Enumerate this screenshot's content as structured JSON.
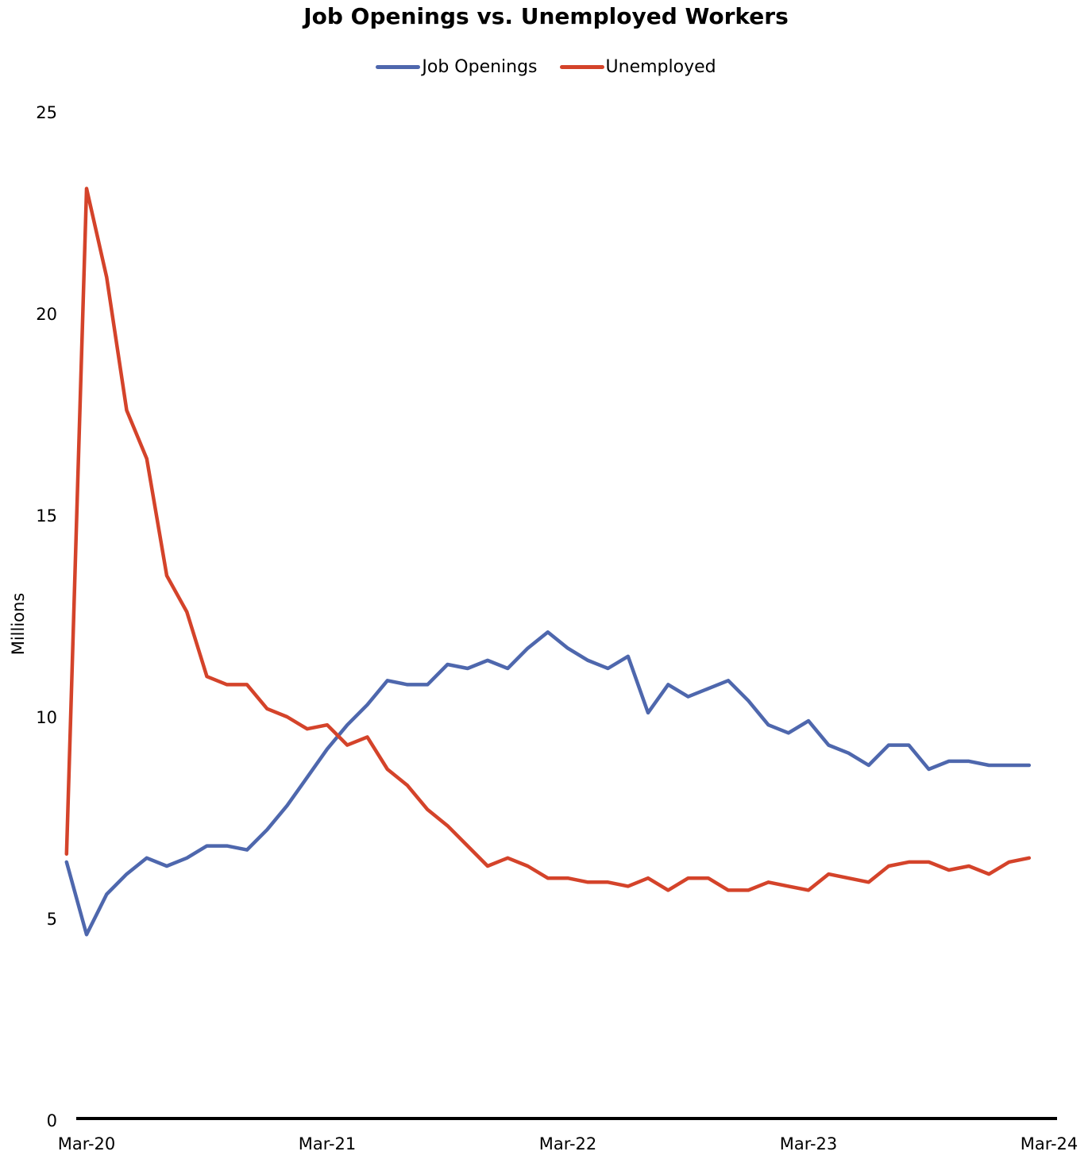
{
  "chart_data": {
    "type": "line",
    "title": "Job Openings vs. Unemployed Workers",
    "xlabel": "",
    "ylabel": "Millions",
    "ylim": [
      0,
      25
    ],
    "y_ticks": [
      "0",
      "5",
      "10",
      "15",
      "20",
      "25"
    ],
    "x_tick_labels": [
      "Mar-20",
      "Mar-21",
      "Mar-22",
      "Mar-23",
      "Mar-24"
    ],
    "x_tick_months": [
      "2020-03",
      "2021-03",
      "2022-03",
      "2023-03",
      "2024-03"
    ],
    "grid": false,
    "legend_position": "top-center",
    "x": [
      "2020-02",
      "2020-03",
      "2020-04",
      "2020-05",
      "2020-06",
      "2020-07",
      "2020-08",
      "2020-09",
      "2020-10",
      "2020-11",
      "2020-12",
      "2021-01",
      "2021-02",
      "2021-03",
      "2021-04",
      "2021-05",
      "2021-06",
      "2021-07",
      "2021-08",
      "2021-09",
      "2021-10",
      "2021-11",
      "2021-12",
      "2022-01",
      "2022-02",
      "2022-03",
      "2022-04",
      "2022-05",
      "2022-06",
      "2022-07",
      "2022-08",
      "2022-09",
      "2022-10",
      "2022-11",
      "2022-12",
      "2023-01",
      "2023-02",
      "2023-03",
      "2023-04",
      "2023-05",
      "2023-06",
      "2023-07",
      "2023-08",
      "2023-09",
      "2023-10",
      "2023-11",
      "2023-12",
      "2024-01",
      "2024-02"
    ],
    "series": [
      {
        "name": "Job Openings",
        "color": "#4e67ad",
        "values": [
          6.4,
          4.6,
          5.6,
          6.1,
          6.5,
          6.3,
          6.5,
          6.8,
          6.8,
          6.7,
          7.2,
          7.8,
          8.5,
          9.2,
          9.8,
          10.3,
          10.9,
          10.8,
          10.8,
          11.3,
          11.2,
          11.4,
          11.2,
          11.7,
          12.1,
          11.7,
          11.4,
          11.2,
          11.5,
          10.1,
          10.8,
          10.5,
          10.7,
          10.9,
          10.4,
          9.8,
          9.6,
          9.9,
          9.3,
          9.1,
          8.8,
          9.3,
          9.3,
          8.7,
          8.9,
          8.9,
          8.8,
          8.8,
          8.8
        ]
      },
      {
        "name": "Unemployed",
        "color": "#d4432a",
        "values": [
          6.6,
          23.1,
          20.9,
          17.6,
          16.4,
          13.5,
          12.6,
          11.0,
          10.8,
          10.8,
          10.2,
          10.0,
          9.7,
          9.8,
          9.3,
          9.5,
          8.7,
          8.3,
          7.7,
          7.3,
          6.8,
          6.3,
          6.5,
          6.3,
          6.0,
          6.0,
          5.9,
          5.9,
          5.8,
          6.0,
          5.7,
          6.0,
          6.0,
          5.7,
          5.7,
          5.9,
          5.8,
          5.7,
          6.1,
          6.0,
          5.9,
          6.3,
          6.4,
          6.4,
          6.2,
          6.3,
          6.1,
          6.4,
          6.5
        ]
      }
    ]
  }
}
